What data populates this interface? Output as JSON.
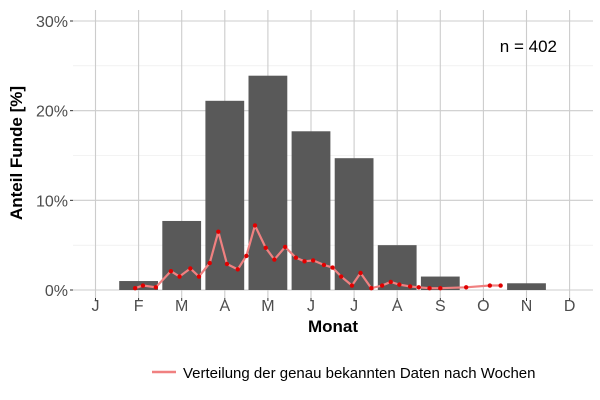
{
  "chart_data": {
    "type": "bar",
    "xlabel": "Monat",
    "ylabel": "Anteil Funde [%]",
    "categories": [
      "J",
      "F",
      "M",
      "A",
      "M",
      "J",
      "J",
      "A",
      "S",
      "O",
      "N",
      "D"
    ],
    "y_ticks": [
      "0%",
      "10%",
      "20%",
      "30%"
    ],
    "ylim": [
      0,
      30
    ],
    "grid": true,
    "legend_position": "bottom-right",
    "annotation": "n = 402",
    "series": [
      {
        "type": "bar",
        "values": [
          0,
          1.0,
          7.7,
          21.1,
          23.9,
          17.7,
          14.7,
          5.0,
          1.5,
          0,
          0.75,
          0
        ],
        "color": "#595959"
      },
      {
        "type": "line",
        "name": "Verteilung der genau bekannten Daten nach Wochen",
        "color": "#f08080",
        "marker_color": "#e00000",
        "x": [
          1.92,
          2.1,
          2.4,
          2.75,
          2.95,
          3.2,
          3.4,
          3.65,
          3.85,
          4.05,
          4.3,
          4.5,
          4.7,
          4.95,
          5.15,
          5.4,
          5.65,
          5.85,
          6.05,
          6.3,
          6.5,
          6.7,
          6.95,
          7.15,
          7.4,
          7.65,
          7.85,
          8.05,
          8.3,
          8.5,
          8.75,
          9.0,
          9.6,
          10.15,
          10.4
        ],
        "y": [
          0.2,
          0.5,
          0.3,
          2.1,
          1.5,
          2.4,
          1.5,
          3.0,
          6.5,
          2.9,
          2.3,
          3.8,
          7.2,
          4.7,
          3.4,
          4.8,
          3.6,
          3.2,
          3.3,
          2.8,
          2.5,
          1.5,
          0.5,
          1.9,
          0.2,
          0.5,
          0.9,
          0.6,
          0.4,
          0.3,
          0.2,
          0.2,
          0.3,
          0.5,
          0.5
        ]
      }
    ]
  }
}
